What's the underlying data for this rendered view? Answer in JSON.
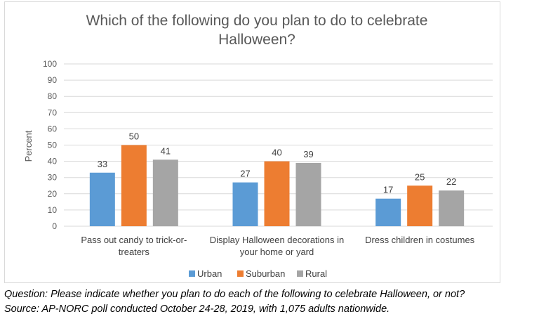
{
  "chart_data": {
    "type": "bar",
    "title": "Which of the following do you plan to do to celebrate Halloween?",
    "title_lines": [
      "Which of the following do you plan to do to celebrate",
      "Halloween?"
    ],
    "ylabel": "Percent",
    "ylim": [
      0,
      100
    ],
    "yticks": [
      "0",
      "10",
      "20",
      "30",
      "40",
      "50",
      "60",
      "70",
      "80",
      "90",
      "100"
    ],
    "grid": true,
    "legend_position": "bottom",
    "categories": [
      "Pass out candy to trick-or-treaters",
      "Display Halloween decorations in your home or yard",
      "Dress children in costumes"
    ],
    "category_lines": [
      [
        "Pass out candy to trick-or-",
        "treaters"
      ],
      [
        "Display Halloween decorations in",
        "your home or yard"
      ],
      [
        "Dress children in costumes"
      ]
    ],
    "series": [
      {
        "name": "Urban",
        "color": "#5b9bd5",
        "values": [
          33,
          27,
          17
        ]
      },
      {
        "name": "Suburban",
        "color": "#ed7d31",
        "values": [
          50,
          40,
          25
        ]
      },
      {
        "name": "Rural",
        "color": "#a5a5a5",
        "values": [
          41,
          39,
          22
        ]
      }
    ]
  },
  "notes": {
    "question": "Question:  Please indicate whether you plan to do each of the following to celebrate Halloween, or not?",
    "source": "Source: AP-NORC poll conducted October 24-28, 2019, with 1,075 adults nationwide."
  }
}
